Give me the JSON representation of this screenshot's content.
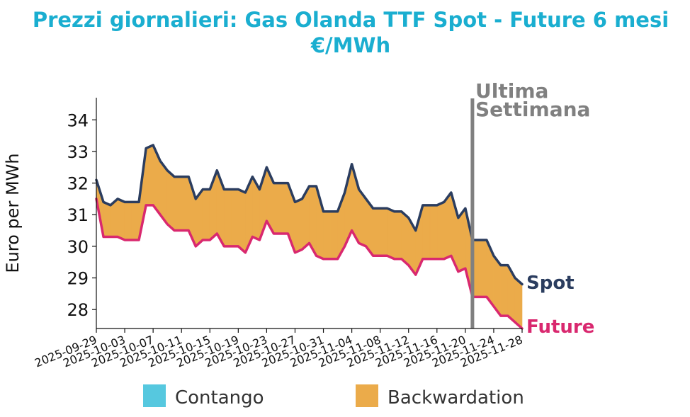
{
  "chart_data": {
    "type": "area",
    "title": [
      "Prezzi giornalieri: Gas Olanda TTF Spot - Future 6 mesi",
      "€/MWh"
    ],
    "ylabel": "Euro per MWh",
    "xlabel": "",
    "ylim": [
      27.4,
      34.7
    ],
    "yticks": [
      28,
      29,
      30,
      31,
      32,
      33,
      34
    ],
    "xticks": [
      "2025-09-29",
      "2025-10-03",
      "2025-10-07",
      "2025-10-11",
      "2025-10-15",
      "2025-10-19",
      "2025-10-23",
      "2025-10-27",
      "2025-10-31",
      "2025-11-04",
      "2025-11-08",
      "2025-11-12",
      "2025-11-16",
      "2025-11-20",
      "2025-11-24",
      "2025-11-28"
    ],
    "x": [
      "2025-09-29",
      "2025-09-30",
      "2025-10-01",
      "2025-10-02",
      "2025-10-03",
      "2025-10-04",
      "2025-10-05",
      "2025-10-06",
      "2025-10-07",
      "2025-10-08",
      "2025-10-09",
      "2025-10-10",
      "2025-10-11",
      "2025-10-12",
      "2025-10-13",
      "2025-10-14",
      "2025-10-15",
      "2025-10-16",
      "2025-10-17",
      "2025-10-18",
      "2025-10-19",
      "2025-10-20",
      "2025-10-21",
      "2025-10-22",
      "2025-10-23",
      "2025-10-24",
      "2025-10-25",
      "2025-10-26",
      "2025-10-27",
      "2025-10-28",
      "2025-10-29",
      "2025-10-30",
      "2025-10-31",
      "2025-11-01",
      "2025-11-02",
      "2025-11-03",
      "2025-11-04",
      "2025-11-05",
      "2025-11-06",
      "2025-11-07",
      "2025-11-08",
      "2025-11-09",
      "2025-11-10",
      "2025-11-11",
      "2025-11-12",
      "2025-11-13",
      "2025-11-14",
      "2025-11-15",
      "2025-11-16",
      "2025-11-17",
      "2025-11-18",
      "2025-11-19",
      "2025-11-20",
      "2025-11-21",
      "2025-11-22",
      "2025-11-23",
      "2025-11-24",
      "2025-11-25",
      "2025-11-26",
      "2025-11-27",
      "2025-11-28"
    ],
    "series": [
      {
        "name": "Spot",
        "color": "#2b3d5f",
        "values": [
          32.1,
          31.4,
          31.3,
          31.5,
          31.4,
          31.4,
          31.4,
          33.1,
          33.2,
          32.7,
          32.4,
          32.2,
          32.2,
          32.2,
          31.5,
          31.8,
          31.8,
          32.4,
          31.8,
          31.8,
          31.8,
          31.7,
          32.2,
          31.8,
          32.5,
          32.0,
          32.0,
          32.0,
          31.4,
          31.5,
          31.9,
          31.9,
          31.1,
          31.1,
          31.1,
          31.7,
          32.6,
          31.8,
          31.5,
          31.2,
          31.2,
          31.2,
          31.1,
          31.1,
          30.9,
          30.5,
          31.3,
          31.3,
          31.3,
          31.4,
          31.7,
          30.9,
          31.2,
          30.2,
          30.2,
          30.2,
          29.7,
          29.4,
          29.4,
          29.0,
          28.8
        ]
      },
      {
        "name": "Future",
        "color": "#d9286f",
        "values": [
          31.5,
          30.3,
          30.3,
          30.3,
          30.2,
          30.2,
          30.2,
          31.3,
          31.3,
          31.0,
          30.7,
          30.5,
          30.5,
          30.5,
          30.0,
          30.2,
          30.2,
          30.4,
          30.0,
          30.0,
          30.0,
          29.8,
          30.3,
          30.2,
          30.8,
          30.4,
          30.4,
          30.4,
          29.8,
          29.9,
          30.1,
          29.7,
          29.6,
          29.6,
          29.6,
          30.0,
          30.5,
          30.1,
          30.0,
          29.7,
          29.7,
          29.7,
          29.6,
          29.6,
          29.4,
          29.1,
          29.6,
          29.6,
          29.6,
          29.6,
          29.7,
          29.2,
          29.3,
          28.4,
          28.4,
          28.4,
          28.1,
          27.8,
          27.8,
          27.6,
          27.4
        ]
      }
    ],
    "fill_colors": {
      "contango": "#56c8df",
      "backwardation": "#ebab4a"
    },
    "annotation": {
      "text": [
        "Ultima",
        "Settimana"
      ],
      "date": "2025-11-21",
      "color": "#808080"
    },
    "legend": {
      "placement": "bottom",
      "items": [
        {
          "label": "Contango",
          "color": "#56c8df"
        },
        {
          "label": "Backwardation",
          "color": "#ebab4a"
        }
      ]
    },
    "end_labels": [
      {
        "text": "Spot",
        "color": "#2b3d5f"
      },
      {
        "text": "Future",
        "color": "#d9286f"
      }
    ],
    "grid": false
  }
}
